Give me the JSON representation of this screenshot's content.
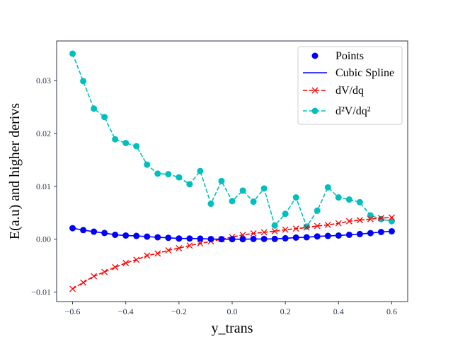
{
  "chart_data": {
    "type": "line",
    "title": "",
    "xlabel": "y_trans",
    "ylabel": "E(a.u) and higher derivs",
    "xlim": [
      -0.66,
      0.66
    ],
    "ylim": [
      -0.0118,
      0.0375
    ],
    "grid": false,
    "x_ticks": [
      -0.6,
      -0.4,
      -0.2,
      0.0,
      0.2,
      0.4,
      0.6
    ],
    "x_tick_labels": [
      "−0.6",
      "−0.4",
      "−0.2",
      "0.0",
      "0.2",
      "0.4",
      "0.6"
    ],
    "y_ticks": [
      -0.01,
      0.0,
      0.01,
      0.02,
      0.03
    ],
    "y_tick_labels": [
      "−0.01",
      "0.00",
      "0.01",
      "0.02",
      "0.03"
    ],
    "legend_position": "top-right",
    "x": [
      -0.6,
      -0.56,
      -0.52,
      -0.48,
      -0.44,
      -0.4,
      -0.36,
      -0.32,
      -0.28,
      -0.24,
      -0.2,
      -0.16,
      -0.12,
      -0.08,
      -0.04,
      0.0,
      0.04,
      0.08,
      0.12,
      0.16,
      0.2,
      0.24,
      0.28,
      0.32,
      0.36,
      0.4,
      0.44,
      0.48,
      0.52,
      0.56,
      0.6
    ],
    "series": [
      {
        "name": "Points",
        "legend_label": "Points",
        "style": "markers",
        "marker": "circle",
        "color": "#0000ff",
        "values": [
          0.00208,
          0.00172,
          0.00142,
          0.00117,
          0.00083,
          0.0007,
          0.00062,
          0.00049,
          0.00036,
          0.00026,
          0.00013,
          0.00013,
          0.0001,
          3e-05,
          0.0,
          0.0,
          0.0,
          4e-05,
          4e-05,
          5e-05,
          0.00017,
          0.0003,
          0.00036,
          0.00053,
          0.00062,
          0.0007,
          0.00083,
          0.00097,
          0.00115,
          0.00136,
          0.0015
        ]
      },
      {
        "name": "Cubic Spline",
        "legend_label": "Cubic Spline",
        "style": "solid-line",
        "color": "#0000ff",
        "values": [
          0.00208,
          0.00172,
          0.00142,
          0.00117,
          0.00083,
          0.0007,
          0.00062,
          0.00049,
          0.00036,
          0.00026,
          0.00013,
          0.00013,
          0.0001,
          3e-05,
          0.0,
          0.0,
          0.0,
          4e-05,
          4e-05,
          5e-05,
          0.00017,
          0.0003,
          0.00036,
          0.00053,
          0.00062,
          0.0007,
          0.00083,
          0.00097,
          0.00115,
          0.00136,
          0.0015
        ]
      },
      {
        "name": "dV/dq",
        "legend_label": "dV/dq",
        "style": "dashed-line",
        "marker": "x",
        "color": "#ff0000",
        "values": [
          -0.0094,
          -0.0082,
          -0.007,
          -0.0062,
          -0.0053,
          -0.0045,
          -0.0039,
          -0.0031,
          -0.0027,
          -0.0021,
          -0.0017,
          -0.0012,
          -0.0008,
          -0.0004,
          0.0,
          0.0004,
          0.0008,
          0.0011,
          0.0013,
          0.0015,
          0.0018,
          0.002,
          0.0022,
          0.0025,
          0.0027,
          0.003,
          0.0034,
          0.0036,
          0.0038,
          0.004,
          0.0041
        ]
      },
      {
        "name": "d2V/dq2",
        "legend_label": "d²V/dq²",
        "style": "dashed-line",
        "marker": "circle",
        "color": "#00bfbf",
        "values": [
          0.0351,
          0.0299,
          0.0247,
          0.0231,
          0.0189,
          0.0182,
          0.0176,
          0.0141,
          0.0124,
          0.0123,
          0.0117,
          0.0104,
          0.0129,
          0.0067,
          0.011,
          0.0072,
          0.0092,
          0.0071,
          0.0096,
          0.0026,
          0.0048,
          0.0079,
          0.0024,
          0.0054,
          0.0098,
          0.0079,
          0.0075,
          0.007,
          0.0045,
          0.0038,
          0.0034
        ]
      }
    ]
  },
  "colors": {
    "axis": "#2b3648",
    "legend_border": "#cccccc"
  }
}
